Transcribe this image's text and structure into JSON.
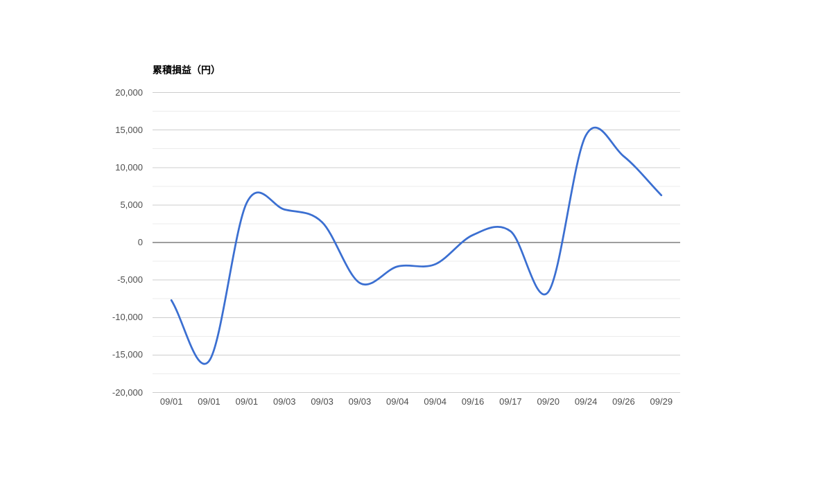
{
  "page": {
    "background": "#ffffff"
  },
  "chart_data": {
    "type": "line",
    "title": "累積損益（円）",
    "curve": "smooth",
    "legend": "none",
    "grid": true,
    "categories": [
      "09/01",
      "09/01",
      "09/01",
      "09/03",
      "09/03",
      "09/03",
      "09/04",
      "09/04",
      "09/16",
      "09/17",
      "09/20",
      "09/24",
      "09/26",
      "09/29"
    ],
    "series": [
      {
        "name": "累積損益",
        "values": [
          -7700,
          -15800,
          5300,
          4400,
          2700,
          -5400,
          -3200,
          -2900,
          1000,
          1500,
          -6600,
          14300,
          11500,
          6300
        ]
      }
    ],
    "xlabel": "",
    "ylabel": "",
    "ylim": [
      -20000,
      20000
    ],
    "y_major_step": 5000,
    "y_minor_step": 2500,
    "y_tick_labels": [
      "20,000",
      "15,000",
      "10,000",
      "5,000",
      "0",
      "-5,000",
      "-10,000",
      "-15,000",
      "-20,000"
    ],
    "colors": {
      "line": "#3b6fd1",
      "grid_major": "#cccccc",
      "grid_minor": "#ebebeb",
      "zero_line": "#3c3c3c",
      "axis_label": "#4d4d4d",
      "title": "#000000",
      "background": "#ffffff"
    }
  }
}
